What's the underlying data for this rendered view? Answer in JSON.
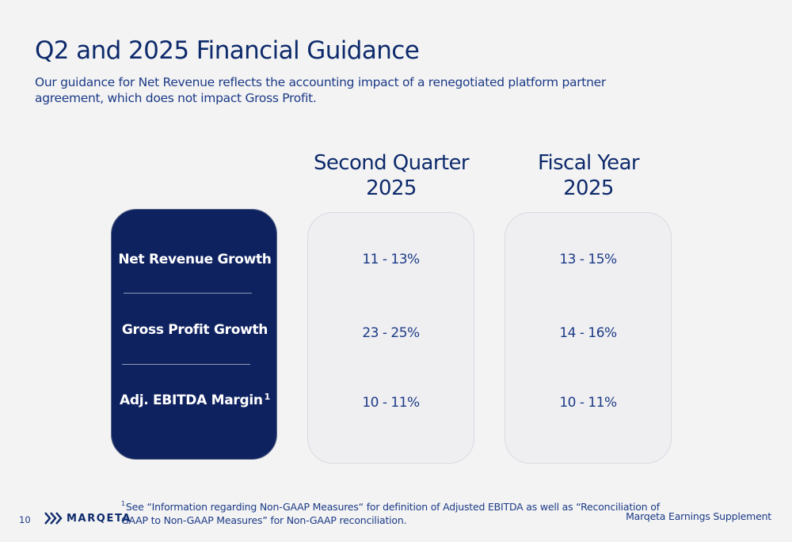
{
  "title": "Q2 and 2025 Financial Guidance",
  "subtitle": "Our guidance for Net Revenue reflects the accounting impact of a renegotiated platform partner agreement, which does not impact Gross Profit.",
  "columns": [
    {
      "line1": "Second Quarter",
      "line2": "2025",
      "values": [
        "11 - 13%",
        "23 - 25%",
        "10 - 11%"
      ]
    },
    {
      "line1": "Fiscal Year",
      "line2": "2025",
      "values": [
        "13 - 15%",
        "14 - 16%",
        "10 - 11%"
      ]
    }
  ],
  "rows": [
    {
      "label": "Net Revenue Growth",
      "sup": ""
    },
    {
      "label": "Gross Profit Growth",
      "sup": ""
    },
    {
      "label": "Adj. EBITDA Margin",
      "sup": "1"
    }
  ],
  "footer": {
    "page_number": "10",
    "logo_text": "MARQETA",
    "footnote_marker": "1",
    "footnote": "See “Information regarding Non-GAAP Measures“ for definition of Adjusted EBITDA as well as “Reconciliation of GAAP to Non-GAAP Measures” for Non-GAAP reconciliation.",
    "supplement": "Marqeta Earnings Supplement"
  },
  "colors": {
    "navy": "#0f2260",
    "text": "#0d2a6b",
    "card": "#efeff2",
    "background": "#f3f3f4"
  },
  "icons": {
    "logo": "marqeta-chevrons-icon"
  }
}
